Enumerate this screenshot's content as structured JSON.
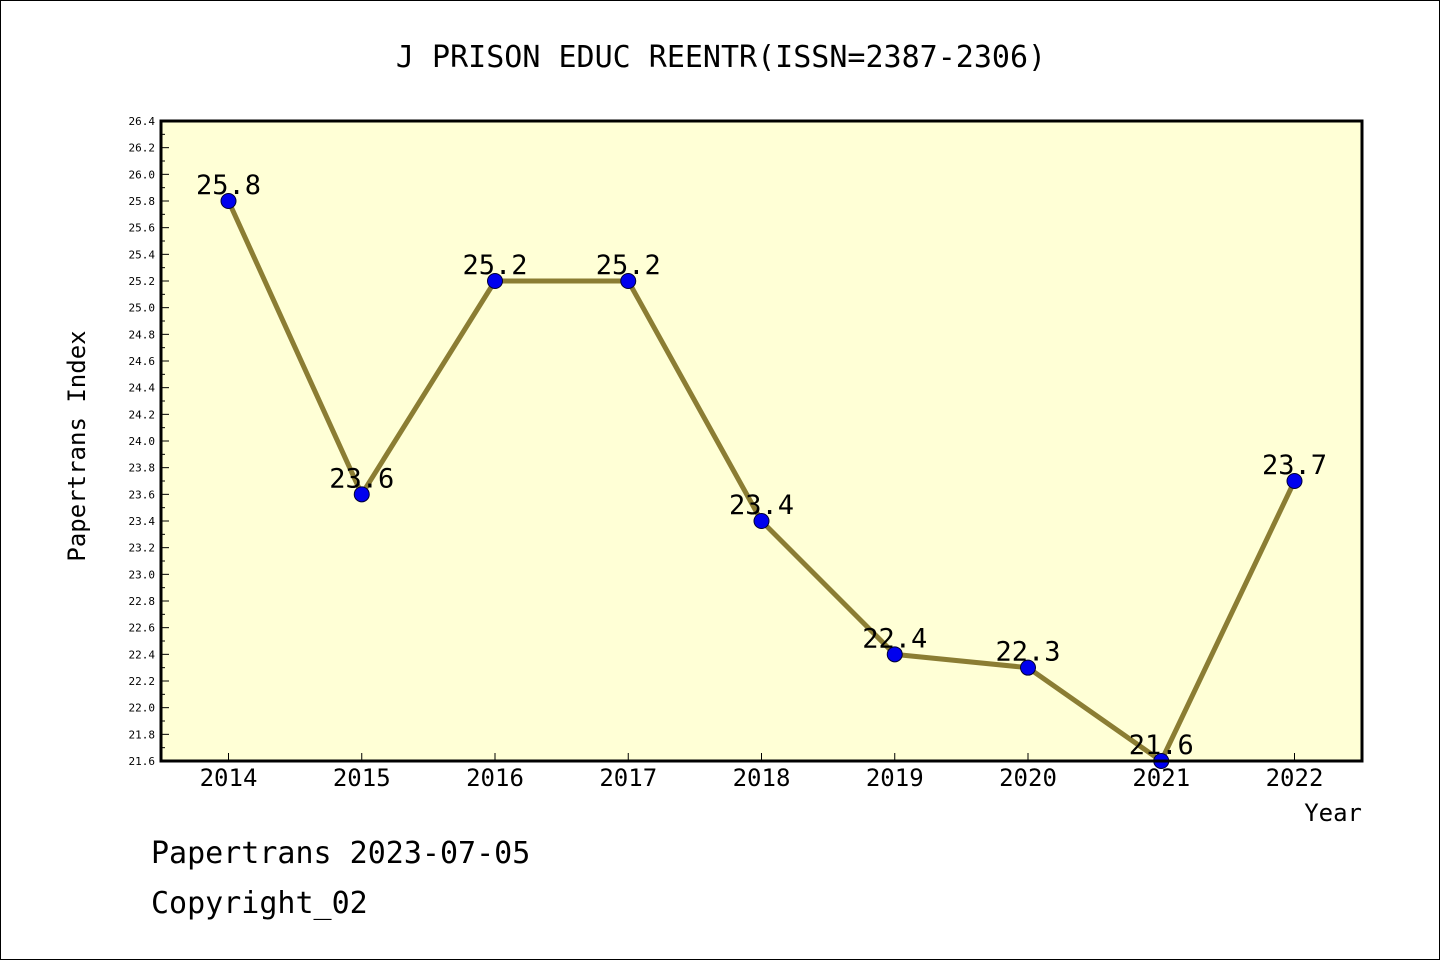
{
  "chart_data": {
    "type": "line",
    "title": "J PRISON EDUC REENTR(ISSN=2387-2306)",
    "xlabel": "Year",
    "ylabel": "Papertrans Index",
    "categories": [
      "2014",
      "2015",
      "2016",
      "2017",
      "2018",
      "2019",
      "2020",
      "2021",
      "2022"
    ],
    "series": [
      {
        "values": [
          25.8,
          23.6,
          25.2,
          25.2,
          23.4,
          22.4,
          22.3,
          21.6,
          23.7
        ],
        "labels": [
          "25.8",
          "23.6",
          "25.2",
          "25.2",
          "23.4",
          "22.4",
          "22.3",
          "21.6",
          "23.7"
        ]
      }
    ],
    "ylim": [
      21.6,
      26.4
    ],
    "yticks": [
      "21.6",
      "21.8",
      "22.0",
      "22.2",
      "22.4",
      "22.6",
      "22.8",
      "23.0",
      "23.2",
      "23.4",
      "23.6",
      "23.8",
      "24.0",
      "24.2",
      "24.4",
      "24.6",
      "24.8",
      "25.0",
      "25.2",
      "25.4",
      "25.6",
      "25.8",
      "26.0",
      "26.2",
      "26.4"
    ],
    "grid": false,
    "colors": {
      "plot_background": "#ffffd6",
      "line": "#8b7d33",
      "marker": "#0000ee"
    }
  },
  "footer": {
    "line1": "Papertrans 2023-07-05",
    "line2": "Copyright_02"
  }
}
